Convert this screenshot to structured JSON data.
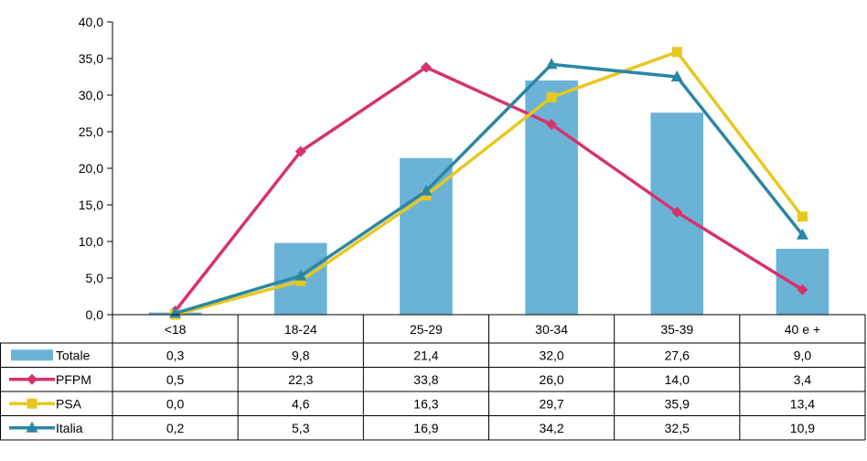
{
  "chart_data": {
    "type": "bar+line",
    "categories": [
      "<18",
      "18-24",
      "25-29",
      "30-34",
      "35-39",
      "40 e +"
    ],
    "ylim": [
      0,
      40
    ],
    "yticks": [
      "0,0",
      "5,0",
      "10,0",
      "15,0",
      "20,0",
      "25,0",
      "30,0",
      "35,0",
      "40,0"
    ],
    "grid": false,
    "legend": "data-table",
    "series": [
      {
        "name": "Totale",
        "kind": "bar",
        "marker": "none",
        "color": "#6BB3D6",
        "values": [
          0.3,
          9.8,
          21.4,
          32.0,
          27.6,
          9.0
        ],
        "labels": [
          "0,3",
          "9,8",
          "21,4",
          "32,0",
          "27,6",
          "9,0"
        ]
      },
      {
        "name": "PFPM",
        "kind": "line",
        "marker": "diamond",
        "color": "#D6336C",
        "values": [
          0.5,
          22.3,
          33.8,
          26.0,
          14.0,
          3.4
        ],
        "labels": [
          "0,5",
          "22,3",
          "33,8",
          "26,0",
          "14,0",
          "3,4"
        ]
      },
      {
        "name": "PSA",
        "kind": "line",
        "marker": "square",
        "color": "#E8C721",
        "values": [
          0.0,
          4.6,
          16.3,
          29.7,
          35.9,
          13.4
        ],
        "labels": [
          "0,0",
          "4,6",
          "16,3",
          "29,7",
          "35,9",
          "13,4"
        ]
      },
      {
        "name": "Italia",
        "kind": "line",
        "marker": "triangle",
        "color": "#2B86A4",
        "values": [
          0.2,
          5.3,
          16.9,
          34.2,
          32.5,
          10.9
        ],
        "labels": [
          "0,2",
          "5,3",
          "16,9",
          "34,2",
          "32,5",
          "10,9"
        ]
      }
    ]
  }
}
